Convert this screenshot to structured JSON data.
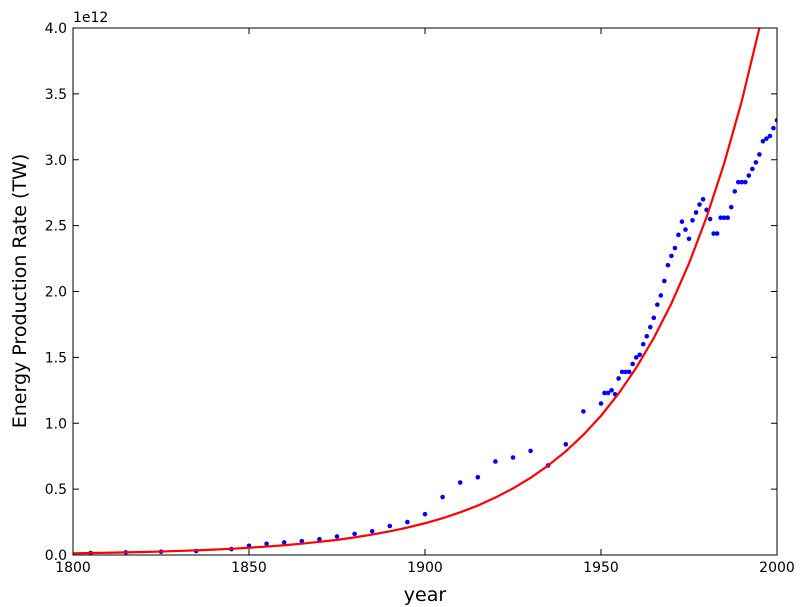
{
  "chart_data": {
    "type": "scatter",
    "xlabel": "year",
    "ylabel": "Energy Production Rate (TW)",
    "y_offset_text": "1e12",
    "xlim": [
      1800,
      2000
    ],
    "ylim": [
      0,
      4
    ],
    "xticks": [
      1800,
      1850,
      1900,
      1950,
      2000
    ],
    "yticks": [
      {
        "value": 0,
        "label": "0.0"
      },
      0.5,
      {
        "value": 1,
        "label": "1.0"
      },
      1.5,
      {
        "value": 2,
        "label": "2.0"
      },
      2.5,
      {
        "value": 3,
        "label": "3.0"
      },
      3.5,
      {
        "value": 4,
        "label": "4.0"
      }
    ],
    "series": [
      {
        "type": "scatter",
        "color": "#0000ff",
        "x": [
          1805,
          1815,
          1825,
          1835,
          1845,
          1850,
          1855,
          1860,
          1865,
          1870,
          1875,
          1880,
          1885,
          1890,
          1895,
          1900,
          1905,
          1910,
          1915,
          1920,
          1925,
          1930,
          1935,
          1940,
          1945,
          1950,
          1951,
          1952,
          1953,
          1954,
          1955,
          1956,
          1957,
          1958,
          1959,
          1960,
          1961,
          1962,
          1963,
          1964,
          1965,
          1966,
          1967,
          1968,
          1969,
          1970,
          1971,
          1972,
          1973,
          1974,
          1975,
          1976,
          1977,
          1978,
          1979,
          1980,
          1981,
          1982,
          1983,
          1984,
          1985,
          1986,
          1987,
          1988,
          1989,
          1990,
          1991,
          1992,
          1993,
          1994,
          1995,
          1996,
          1997,
          1998,
          1999,
          2000
        ],
        "values": [
          0.015,
          0.02,
          0.025,
          0.03,
          0.045,
          0.07,
          0.085,
          0.095,
          0.105,
          0.12,
          0.14,
          0.16,
          0.18,
          0.22,
          0.25,
          0.31,
          0.44,
          0.55,
          0.59,
          0.71,
          0.74,
          0.79,
          0.68,
          0.84,
          1.09,
          1.15,
          1.23,
          1.23,
          1.25,
          1.22,
          1.34,
          1.39,
          1.39,
          1.39,
          1.45,
          1.5,
          1.52,
          1.6,
          1.66,
          1.73,
          1.8,
          1.9,
          1.97,
          2.08,
          2.2,
          2.27,
          2.33,
          2.43,
          2.53,
          2.47,
          2.4,
          2.54,
          2.6,
          2.66,
          2.7,
          2.62,
          2.55,
          2.44,
          2.44,
          2.56,
          2.56,
          2.56,
          2.64,
          2.76,
          2.83,
          2.83,
          2.83,
          2.88,
          2.93,
          2.98,
          3.04,
          3.14,
          3.16,
          3.18,
          3.24,
          3.3
        ]
      },
      {
        "type": "line",
        "color": "#ff0000",
        "x": [
          1800,
          1805,
          1810,
          1815,
          1820,
          1825,
          1830,
          1835,
          1840,
          1845,
          1850,
          1855,
          1860,
          1865,
          1870,
          1875,
          1880,
          1885,
          1890,
          1895,
          1900,
          1905,
          1910,
          1915,
          1920,
          1925,
          1930,
          1935,
          1940,
          1945,
          1950,
          1955,
          1960,
          1965,
          1970,
          1975,
          1980,
          1985,
          1990,
          1995
        ],
        "values": [
          0.013,
          0.015,
          0.017,
          0.02,
          0.023,
          0.026,
          0.031,
          0.035,
          0.041,
          0.047,
          0.055,
          0.064,
          0.074,
          0.086,
          0.1,
          0.115,
          0.134,
          0.155,
          0.18,
          0.208,
          0.241,
          0.279,
          0.324,
          0.375,
          0.436,
          0.505,
          0.586,
          0.679,
          0.787,
          0.912,
          1.057,
          1.225,
          1.421,
          1.647,
          1.909,
          2.213,
          2.565,
          2.973,
          3.446,
          4.0
        ]
      }
    ]
  }
}
